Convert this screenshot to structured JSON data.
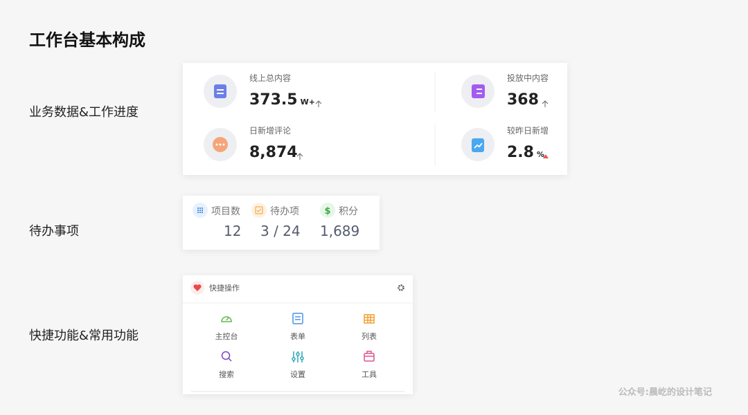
{
  "title": "工作台基本构成",
  "sections": [
    {
      "label": "业务数据&工作进度"
    },
    {
      "label": "待办事项"
    },
    {
      "label": "快捷功能&常用功能"
    }
  ],
  "stats": [
    {
      "label": "线上总内容",
      "value": "373.5",
      "unit": "W+"
    },
    {
      "label": "投放中内容",
      "value": "368"
    },
    {
      "label": "日新增评论",
      "value": "8,874"
    },
    {
      "label": "较昨日新增",
      "value": "2.8",
      "unit": "%"
    }
  ],
  "todo": [
    {
      "label": "项目数",
      "value": "12"
    },
    {
      "label": "待办项",
      "value": "3 / 24"
    },
    {
      "label": "积分",
      "value": "1,689"
    }
  ],
  "quick": {
    "title": "快捷操作",
    "items": [
      "主控台",
      "表单",
      "列表",
      "搜索",
      "设置",
      "工具"
    ]
  },
  "watermark": "公众号:晨屹的设计笔记"
}
